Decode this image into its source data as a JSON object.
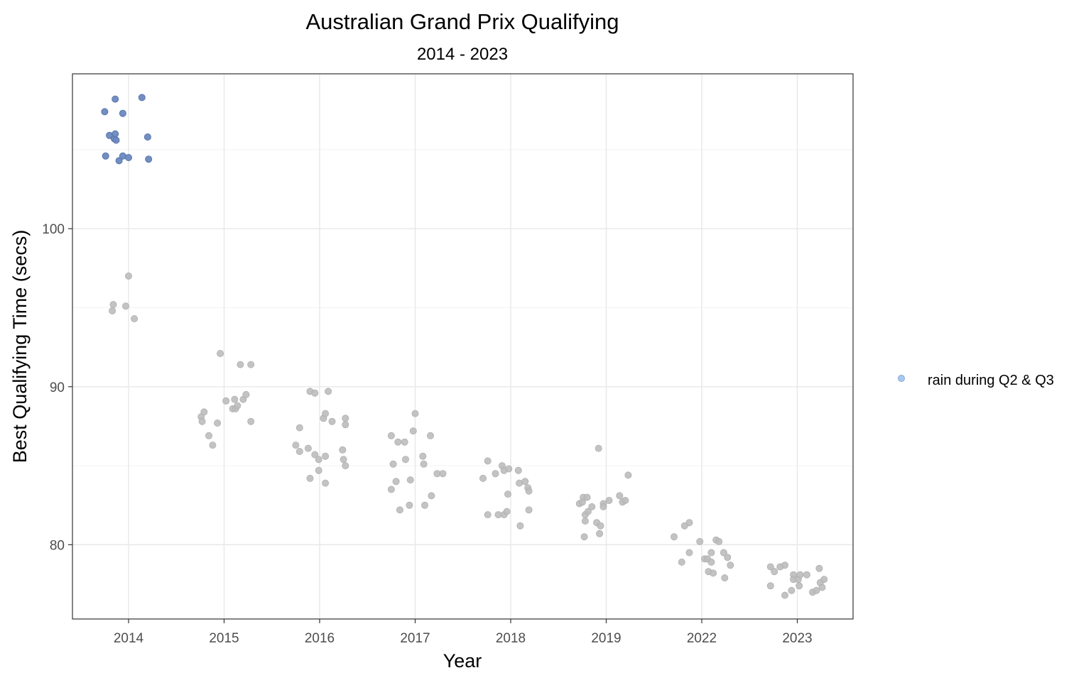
{
  "chart_data": {
    "type": "scatter",
    "title": "Australian Grand Prix Qualifying",
    "subtitle": "2014 - 2023",
    "xlabel": "Year",
    "ylabel": "Best Qualifying Time (secs)",
    "categories": [
      "2014",
      "2015",
      "2016",
      "2017",
      "2018",
      "2019",
      "2022",
      "2023"
    ],
    "y_ticks": [
      80,
      90,
      100
    ],
    "ylim": [
      75.3,
      109.8
    ],
    "grid": true,
    "legend_position": "right",
    "legend": [
      {
        "label": "rain during Q2 & Q3",
        "color": "#a8c8ee"
      }
    ],
    "colors": {
      "rain": "#6b88c0",
      "dry": "#bdbdbd",
      "legend_marker": "#a8c8ee"
    },
    "series": [
      {
        "key": "rain",
        "points": [
          {
            "x": 2014,
            "jitter": -0.24,
            "y": 104.6
          },
          {
            "x": 2014,
            "jitter": -0.25,
            "y": 107.4
          },
          {
            "x": 2014,
            "jitter": -0.2,
            "y": 105.9
          },
          {
            "x": 2014,
            "jitter": -0.15,
            "y": 105.7
          },
          {
            "x": 2014,
            "jitter": -0.14,
            "y": 106.0
          },
          {
            "x": 2014,
            "jitter": -0.13,
            "y": 105.6
          },
          {
            "x": 2014,
            "jitter": -0.14,
            "y": 108.2
          },
          {
            "x": 2014,
            "jitter": -0.1,
            "y": 104.3
          },
          {
            "x": 2014,
            "jitter": -0.06,
            "y": 104.6
          },
          {
            "x": 2014,
            "jitter": -0.06,
            "y": 107.3
          },
          {
            "x": 2014,
            "jitter": 0.0,
            "y": 104.5
          },
          {
            "x": 2014,
            "jitter": 0.14,
            "y": 108.3
          },
          {
            "x": 2014,
            "jitter": 0.2,
            "y": 105.8
          },
          {
            "x": 2014,
            "jitter": 0.21,
            "y": 104.4
          }
        ]
      },
      {
        "key": "dry",
        "points": [
          {
            "x": 2014,
            "jitter": -0.16,
            "y": 95.2
          },
          {
            "x": 2014,
            "jitter": -0.17,
            "y": 94.8
          },
          {
            "x": 2014,
            "jitter": -0.03,
            "y": 95.1
          },
          {
            "x": 2014,
            "jitter": 0.0,
            "y": 97.0
          },
          {
            "x": 2014,
            "jitter": 0.06,
            "y": 94.3
          },
          {
            "x": 2015,
            "jitter": -0.24,
            "y": 88.1
          },
          {
            "x": 2015,
            "jitter": -0.21,
            "y": 88.4
          },
          {
            "x": 2015,
            "jitter": -0.23,
            "y": 87.8
          },
          {
            "x": 2015,
            "jitter": -0.16,
            "y": 86.9
          },
          {
            "x": 2015,
            "jitter": -0.12,
            "y": 86.3
          },
          {
            "x": 2015,
            "jitter": -0.07,
            "y": 87.7
          },
          {
            "x": 2015,
            "jitter": -0.04,
            "y": 92.1
          },
          {
            "x": 2015,
            "jitter": 0.02,
            "y": 89.1
          },
          {
            "x": 2015,
            "jitter": 0.09,
            "y": 88.6
          },
          {
            "x": 2015,
            "jitter": 0.11,
            "y": 89.2
          },
          {
            "x": 2015,
            "jitter": 0.12,
            "y": 88.6
          },
          {
            "x": 2015,
            "jitter": 0.14,
            "y": 88.8
          },
          {
            "x": 2015,
            "jitter": 0.17,
            "y": 91.4
          },
          {
            "x": 2015,
            "jitter": 0.2,
            "y": 89.2
          },
          {
            "x": 2015,
            "jitter": 0.23,
            "y": 89.5
          },
          {
            "x": 2015,
            "jitter": 0.28,
            "y": 91.4
          },
          {
            "x": 2015,
            "jitter": 0.28,
            "y": 87.8
          },
          {
            "x": 2016,
            "jitter": -0.25,
            "y": 86.3
          },
          {
            "x": 2016,
            "jitter": -0.21,
            "y": 87.4
          },
          {
            "x": 2016,
            "jitter": -0.21,
            "y": 85.9
          },
          {
            "x": 2016,
            "jitter": -0.12,
            "y": 86.1
          },
          {
            "x": 2016,
            "jitter": -0.1,
            "y": 89.7
          },
          {
            "x": 2016,
            "jitter": -0.1,
            "y": 84.2
          },
          {
            "x": 2016,
            "jitter": -0.05,
            "y": 89.6
          },
          {
            "x": 2016,
            "jitter": -0.05,
            "y": 85.7
          },
          {
            "x": 2016,
            "jitter": -0.01,
            "y": 85.4
          },
          {
            "x": 2016,
            "jitter": -0.01,
            "y": 84.7
          },
          {
            "x": 2016,
            "jitter": 0.04,
            "y": 88.0
          },
          {
            "x": 2016,
            "jitter": 0.06,
            "y": 88.3
          },
          {
            "x": 2016,
            "jitter": 0.06,
            "y": 85.6
          },
          {
            "x": 2016,
            "jitter": 0.06,
            "y": 83.9
          },
          {
            "x": 2016,
            "jitter": 0.09,
            "y": 89.7
          },
          {
            "x": 2016,
            "jitter": 0.13,
            "y": 87.8
          },
          {
            "x": 2016,
            "jitter": 0.24,
            "y": 86.0
          },
          {
            "x": 2016,
            "jitter": 0.25,
            "y": 85.4
          },
          {
            "x": 2016,
            "jitter": 0.27,
            "y": 88.0
          },
          {
            "x": 2016,
            "jitter": 0.27,
            "y": 87.6
          },
          {
            "x": 2016,
            "jitter": 0.27,
            "y": 85.0
          },
          {
            "x": 2017,
            "jitter": -0.25,
            "y": 86.9
          },
          {
            "x": 2017,
            "jitter": -0.25,
            "y": 83.5
          },
          {
            "x": 2017,
            "jitter": -0.23,
            "y": 85.1
          },
          {
            "x": 2017,
            "jitter": -0.2,
            "y": 84.0
          },
          {
            "x": 2017,
            "jitter": -0.18,
            "y": 86.5
          },
          {
            "x": 2017,
            "jitter": -0.16,
            "y": 82.2
          },
          {
            "x": 2017,
            "jitter": -0.11,
            "y": 86.5
          },
          {
            "x": 2017,
            "jitter": -0.1,
            "y": 85.4
          },
          {
            "x": 2017,
            "jitter": -0.06,
            "y": 82.5
          },
          {
            "x": 2017,
            "jitter": -0.05,
            "y": 84.1
          },
          {
            "x": 2017,
            "jitter": -0.02,
            "y": 87.2
          },
          {
            "x": 2017,
            "jitter": 0.0,
            "y": 88.3
          },
          {
            "x": 2017,
            "jitter": 0.08,
            "y": 85.6
          },
          {
            "x": 2017,
            "jitter": 0.09,
            "y": 85.1
          },
          {
            "x": 2017,
            "jitter": 0.1,
            "y": 82.5
          },
          {
            "x": 2017,
            "jitter": 0.16,
            "y": 86.9
          },
          {
            "x": 2017,
            "jitter": 0.17,
            "y": 83.1
          },
          {
            "x": 2017,
            "jitter": 0.23,
            "y": 84.5
          },
          {
            "x": 2017,
            "jitter": 0.29,
            "y": 84.5
          },
          {
            "x": 2018,
            "jitter": -0.29,
            "y": 84.2
          },
          {
            "x": 2018,
            "jitter": -0.24,
            "y": 85.3
          },
          {
            "x": 2018,
            "jitter": -0.24,
            "y": 81.9
          },
          {
            "x": 2018,
            "jitter": -0.16,
            "y": 84.5
          },
          {
            "x": 2018,
            "jitter": -0.13,
            "y": 81.9
          },
          {
            "x": 2018,
            "jitter": -0.09,
            "y": 85.0
          },
          {
            "x": 2018,
            "jitter": -0.07,
            "y": 84.7
          },
          {
            "x": 2018,
            "jitter": -0.07,
            "y": 81.9
          },
          {
            "x": 2018,
            "jitter": -0.04,
            "y": 82.1
          },
          {
            "x": 2018,
            "jitter": -0.03,
            "y": 83.2
          },
          {
            "x": 2018,
            "jitter": -0.02,
            "y": 84.8
          },
          {
            "x": 2018,
            "jitter": 0.08,
            "y": 84.7
          },
          {
            "x": 2018,
            "jitter": 0.09,
            "y": 83.9
          },
          {
            "x": 2018,
            "jitter": 0.1,
            "y": 81.2
          },
          {
            "x": 2018,
            "jitter": 0.15,
            "y": 84.0
          },
          {
            "x": 2018,
            "jitter": 0.18,
            "y": 83.6
          },
          {
            "x": 2018,
            "jitter": 0.19,
            "y": 83.4
          },
          {
            "x": 2018,
            "jitter": 0.19,
            "y": 82.2
          },
          {
            "x": 2019,
            "jitter": -0.28,
            "y": 82.6
          },
          {
            "x": 2019,
            "jitter": -0.25,
            "y": 82.7
          },
          {
            "x": 2019,
            "jitter": -0.24,
            "y": 83.0
          },
          {
            "x": 2019,
            "jitter": -0.22,
            "y": 81.9
          },
          {
            "x": 2019,
            "jitter": -0.22,
            "y": 81.5
          },
          {
            "x": 2019,
            "jitter": -0.23,
            "y": 80.5
          },
          {
            "x": 2019,
            "jitter": -0.2,
            "y": 83.0
          },
          {
            "x": 2019,
            "jitter": -0.19,
            "y": 82.1
          },
          {
            "x": 2019,
            "jitter": -0.15,
            "y": 82.4
          },
          {
            "x": 2019,
            "jitter": -0.1,
            "y": 81.4
          },
          {
            "x": 2019,
            "jitter": -0.08,
            "y": 86.1
          },
          {
            "x": 2019,
            "jitter": -0.06,
            "y": 81.2
          },
          {
            "x": 2019,
            "jitter": -0.07,
            "y": 80.7
          },
          {
            "x": 2019,
            "jitter": -0.03,
            "y": 82.6
          },
          {
            "x": 2019,
            "jitter": -0.03,
            "y": 82.4
          },
          {
            "x": 2019,
            "jitter": 0.03,
            "y": 82.8
          },
          {
            "x": 2019,
            "jitter": 0.14,
            "y": 83.1
          },
          {
            "x": 2019,
            "jitter": 0.17,
            "y": 82.7
          },
          {
            "x": 2019,
            "jitter": 0.2,
            "y": 82.8
          },
          {
            "x": 2019,
            "jitter": 0.23,
            "y": 84.4
          },
          {
            "x": 2022,
            "jitter": -0.29,
            "y": 80.5
          },
          {
            "x": 2022,
            "jitter": -0.21,
            "y": 78.9
          },
          {
            "x": 2022,
            "jitter": -0.18,
            "y": 81.2
          },
          {
            "x": 2022,
            "jitter": -0.13,
            "y": 81.4
          },
          {
            "x": 2022,
            "jitter": -0.13,
            "y": 79.5
          },
          {
            "x": 2022,
            "jitter": -0.02,
            "y": 80.2
          },
          {
            "x": 2022,
            "jitter": 0.03,
            "y": 79.1
          },
          {
            "x": 2022,
            "jitter": 0.06,
            "y": 79.1
          },
          {
            "x": 2022,
            "jitter": 0.07,
            "y": 78.3
          },
          {
            "x": 2022,
            "jitter": 0.1,
            "y": 79.5
          },
          {
            "x": 2022,
            "jitter": 0.1,
            "y": 78.9
          },
          {
            "x": 2022,
            "jitter": 0.12,
            "y": 78.2
          },
          {
            "x": 2022,
            "jitter": 0.15,
            "y": 80.3
          },
          {
            "x": 2022,
            "jitter": 0.18,
            "y": 80.2
          },
          {
            "x": 2022,
            "jitter": 0.23,
            "y": 79.5
          },
          {
            "x": 2022,
            "jitter": 0.24,
            "y": 77.9
          },
          {
            "x": 2022,
            "jitter": 0.27,
            "y": 79.2
          },
          {
            "x": 2022,
            "jitter": 0.3,
            "y": 78.7
          },
          {
            "x": 2023,
            "jitter": -0.28,
            "y": 78.6
          },
          {
            "x": 2023,
            "jitter": -0.28,
            "y": 77.4
          },
          {
            "x": 2023,
            "jitter": -0.24,
            "y": 78.3
          },
          {
            "x": 2023,
            "jitter": -0.18,
            "y": 78.6
          },
          {
            "x": 2023,
            "jitter": -0.13,
            "y": 78.7
          },
          {
            "x": 2023,
            "jitter": -0.13,
            "y": 76.8
          },
          {
            "x": 2023,
            "jitter": -0.06,
            "y": 77.1
          },
          {
            "x": 2023,
            "jitter": -0.04,
            "y": 78.1
          },
          {
            "x": 2023,
            "jitter": -0.04,
            "y": 77.8
          },
          {
            "x": 2023,
            "jitter": 0.01,
            "y": 77.8
          },
          {
            "x": 2023,
            "jitter": 0.02,
            "y": 77.4
          },
          {
            "x": 2023,
            "jitter": 0.03,
            "y": 78.1
          },
          {
            "x": 2023,
            "jitter": 0.1,
            "y": 78.1
          },
          {
            "x": 2023,
            "jitter": 0.16,
            "y": 77.0
          },
          {
            "x": 2023,
            "jitter": 0.2,
            "y": 77.1
          },
          {
            "x": 2023,
            "jitter": 0.23,
            "y": 78.5
          },
          {
            "x": 2023,
            "jitter": 0.24,
            "y": 77.6
          },
          {
            "x": 2023,
            "jitter": 0.26,
            "y": 77.3
          },
          {
            "x": 2023,
            "jitter": 0.28,
            "y": 77.8
          }
        ]
      }
    ]
  }
}
